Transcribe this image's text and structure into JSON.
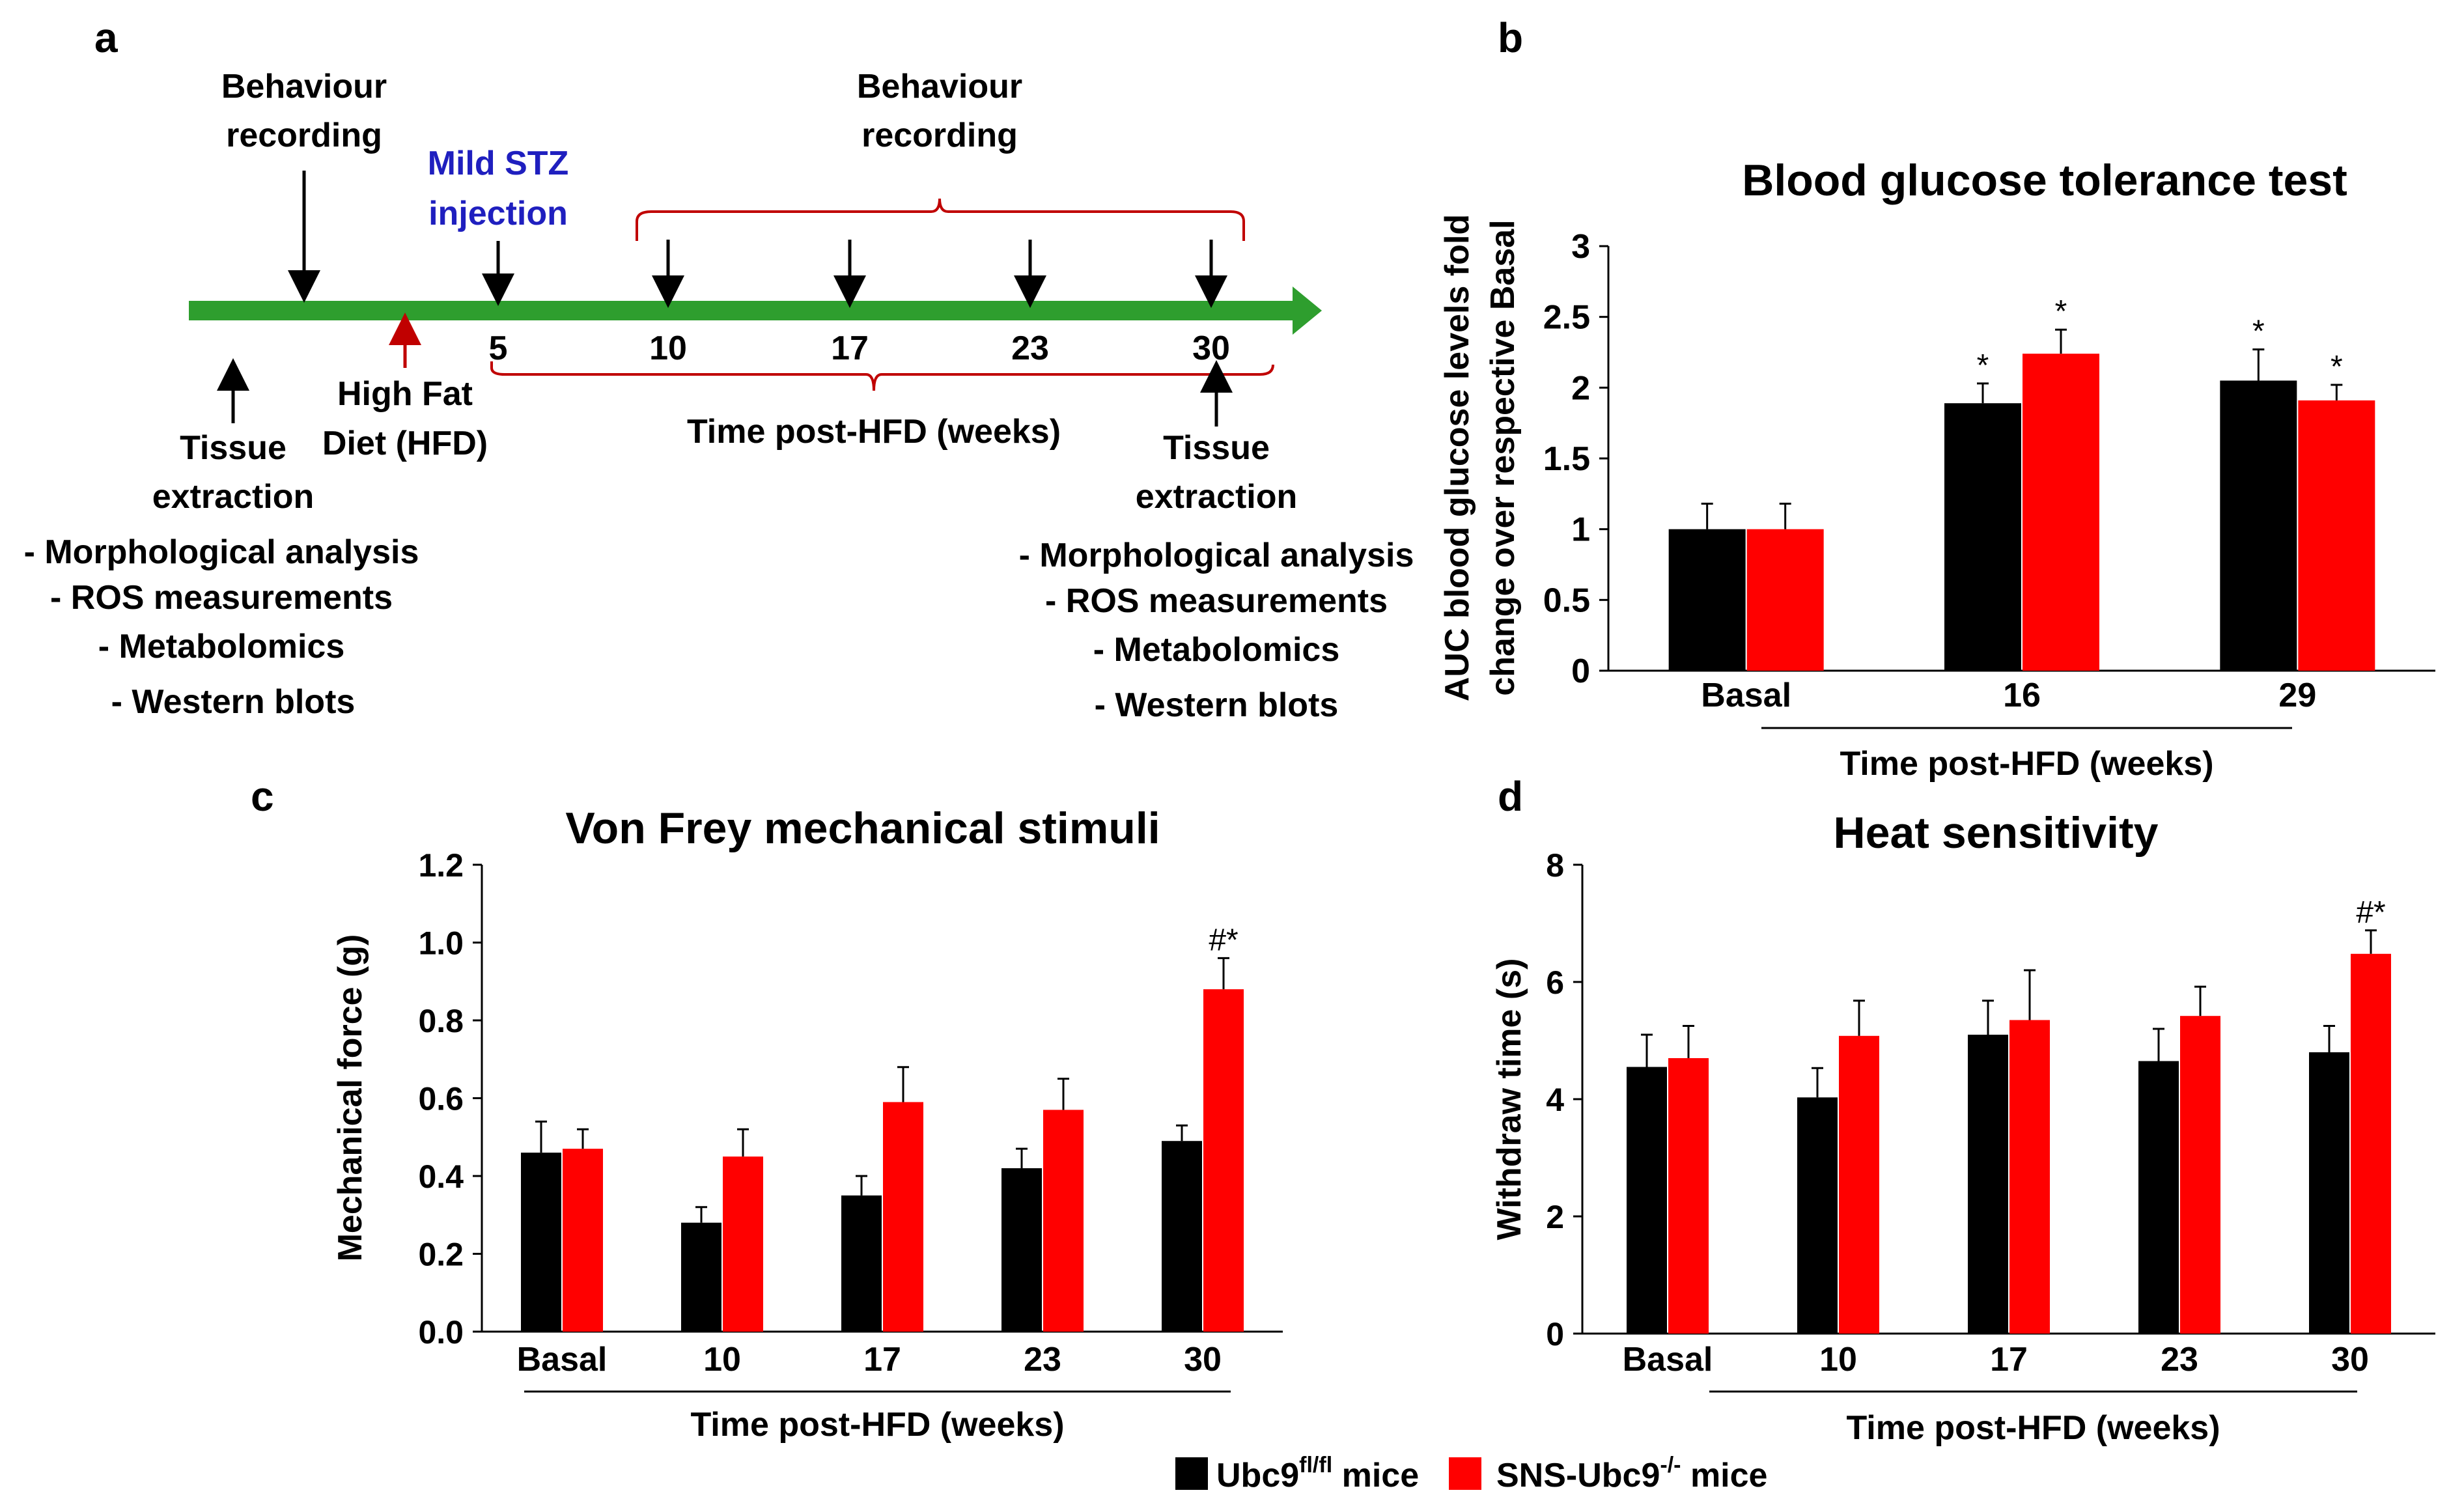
{
  "panels": {
    "a": "a",
    "b": "b",
    "c": "c",
    "d": "d"
  },
  "colors": {
    "green": "#2e9e2e",
    "red_arrow": "#c00000",
    "blue_text": "#1f1fbf",
    "brace": "#c00000",
    "series1": "#000000",
    "series2": "#ff0000"
  },
  "timeline": {
    "behaviour_left": [
      "Behaviour",
      "recording"
    ],
    "behaviour_right": [
      "Behaviour",
      "recording"
    ],
    "stz": [
      "Mild STZ",
      "injection"
    ],
    "hfd": [
      "High Fat",
      "Diet (HFD)"
    ],
    "ticks": [
      "5",
      "10",
      "17",
      "23",
      "30"
    ],
    "axis_label": "Time post-HFD (weeks)",
    "tissue_left": [
      "Tissue",
      "extraction"
    ],
    "tissue_right": [
      "Tissue",
      "extraction"
    ],
    "analyses_left": [
      "- Morphological analysis",
      "- ROS measurements",
      "- Metabolomics",
      "- Western blots"
    ],
    "analyses_right": [
      "- Morphological analysis",
      "- ROS measurements",
      "- Metabolomics",
      "- Western blots"
    ]
  },
  "chart_data": [
    {
      "panel": "b",
      "type": "bar",
      "title": "Blood glucose tolerance test",
      "ylabel_lines": [
        "AUC blood glucose levels fold",
        "change over respective Basal"
      ],
      "xlabel": "Time post-HFD (weeks)",
      "categories": [
        "Basal",
        "16",
        "29"
      ],
      "ylim": [
        0,
        3
      ],
      "yticks": [
        "0",
        "0.5",
        "1",
        "1.5",
        "2",
        "2.5",
        "3"
      ],
      "series": [
        {
          "name": "Ubc9fl/fl mice",
          "values": [
            1.0,
            1.89,
            2.05
          ],
          "errors": [
            0.18,
            0.14,
            0.22
          ],
          "marks": [
            "",
            "*",
            "*"
          ]
        },
        {
          "name": "SNS-Ubc9-/- mice",
          "values": [
            1.0,
            2.24,
            1.91
          ],
          "errors": [
            0.18,
            0.17,
            0.11
          ],
          "marks": [
            "",
            "*",
            "*"
          ]
        }
      ]
    },
    {
      "panel": "c",
      "type": "bar",
      "title": "Von Frey mechanical stimuli",
      "ylabel_lines": [
        "Mechanical force (g)"
      ],
      "xlabel": "Time post-HFD (weeks)",
      "categories": [
        "Basal",
        "10",
        "17",
        "23",
        "30"
      ],
      "ylim": [
        0,
        1.2
      ],
      "yticks": [
        "0.0",
        "0.2",
        "0.4",
        "0.6",
        "0.8",
        "1.0",
        "1.2"
      ],
      "series": [
        {
          "name": "Ubc9fl/fl mice",
          "values": [
            0.46,
            0.28,
            0.35,
            0.42,
            0.49
          ],
          "errors": [
            0.08,
            0.04,
            0.05,
            0.05,
            0.04
          ],
          "marks": [
            "",
            "",
            "",
            "",
            ""
          ]
        },
        {
          "name": "SNS-Ubc9-/- mice",
          "values": [
            0.47,
            0.45,
            0.59,
            0.57,
            0.88
          ],
          "errors": [
            0.05,
            0.07,
            0.09,
            0.08,
            0.08
          ],
          "marks": [
            "",
            "",
            "",
            "",
            "#*"
          ]
        }
      ]
    },
    {
      "panel": "d",
      "type": "bar",
      "title": "Heat sensitivity",
      "ylabel_lines": [
        "Withdraw time (s)"
      ],
      "xlabel": "Time post-HFD (weeks)",
      "categories": [
        "Basal",
        "10",
        "17",
        "23",
        "30"
      ],
      "ylim": [
        0,
        8
      ],
      "yticks": [
        "0",
        "2",
        "4",
        "6",
        "8"
      ],
      "series": [
        {
          "name": "Ubc9fl/fl mice",
          "values": [
            4.55,
            4.03,
            5.1,
            4.65,
            4.8
          ],
          "errors": [
            0.55,
            0.5,
            0.58,
            0.55,
            0.45
          ],
          "marks": [
            "",
            "",
            "",
            "",
            ""
          ]
        },
        {
          "name": "SNS-Ubc9-/- mice",
          "values": [
            4.7,
            5.08,
            5.35,
            5.42,
            6.48
          ],
          "errors": [
            0.55,
            0.6,
            0.85,
            0.5,
            0.4
          ],
          "marks": [
            "",
            "",
            "",
            "",
            "#*"
          ]
        }
      ]
    }
  ],
  "legend": {
    "items": [
      {
        "base": "Ubc9",
        "sup": "fl/fl",
        "suffix": " mice",
        "color": "#000000"
      },
      {
        "base": "SNS-Ubc9",
        "sup": "-/-",
        "suffix": " mice",
        "color": "#ff0000"
      }
    ]
  }
}
